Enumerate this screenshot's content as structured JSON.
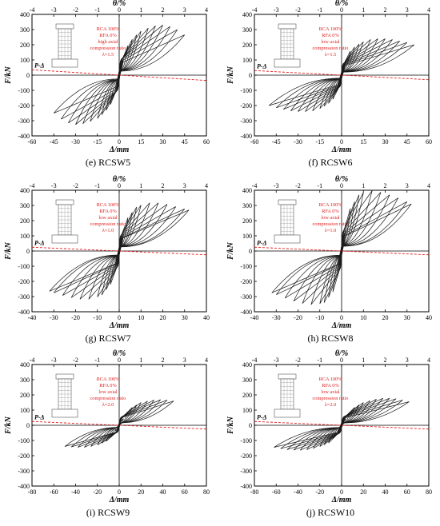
{
  "layout_order": [
    "RCSW5",
    "RCSW6",
    "RCSW7",
    "RCSW8",
    "RCSW9",
    "RCSW10"
  ],
  "colors": {
    "loop": "#1a1a1a",
    "pdelta": "#e02020",
    "note": "#e02020",
    "axis": "#000000"
  },
  "chart_data": [
    {
      "id": "e",
      "caption_letter": "(e)",
      "caption_name": "RCSW5",
      "type": "line",
      "xlabel": "Δ/mm",
      "ylabel": "F/kN",
      "top_label": "θ/%",
      "xlim": [
        -60,
        60
      ],
      "ylim": [
        -400,
        400
      ],
      "xticks": [
        "-60",
        "-45",
        "-30",
        "-15",
        "0",
        "15",
        "30",
        "45",
        "60"
      ],
      "xtick_values": [
        -60,
        -45,
        -30,
        -15,
        0,
        15,
        30,
        45,
        60
      ],
      "topticks": [
        "-4",
        "-3",
        "-2",
        "-1",
        "0",
        "1",
        "2",
        "3",
        "4"
      ],
      "ytick_values": [
        -400,
        -300,
        -200,
        -100,
        0,
        100,
        200,
        300,
        400
      ],
      "yticks": [
        "-400",
        "-300",
        "-200",
        "-100",
        "0",
        "100",
        "200",
        "300",
        "400"
      ],
      "notes": [
        "RCA 100%",
        "RFA 0%",
        "high axial",
        "compression ratio",
        "λ=1.5"
      ],
      "pdelta_label": "P-Δ",
      "pdelta_line": {
        "x": [
          -60,
          60
        ],
        "y": [
          35,
          -35
        ]
      },
      "amplitudes": [
        3,
        6,
        9,
        12,
        15,
        20,
        25,
        30,
        35,
        40,
        45
      ],
      "peak_force": {
        "x": [
          0,
          5,
          10,
          15,
          20,
          25,
          30,
          35,
          40,
          45
        ],
        "pos": [
          0,
          180,
          250,
          290,
          310,
          325,
          330,
          320,
          300,
          265
        ],
        "neg": [
          0,
          -180,
          -245,
          -285,
          -305,
          -320,
          -325,
          -315,
          -290,
          -250
        ]
      }
    },
    {
      "id": "f",
      "caption_letter": "(f)",
      "caption_name": "RCSW6",
      "type": "line",
      "xlabel": "Δ/mm",
      "ylabel": "F/kN",
      "top_label": "θ/%",
      "xlim": [
        -60,
        60
      ],
      "ylim": [
        -400,
        400
      ],
      "xticks": [
        "-60",
        "-45",
        "-30",
        "-15",
        "0",
        "15",
        "30",
        "45",
        "60"
      ],
      "xtick_values": [
        -60,
        -45,
        -30,
        -15,
        0,
        15,
        30,
        45,
        60
      ],
      "topticks": [
        "-4",
        "-3",
        "-2",
        "-1",
        "0",
        "1",
        "2",
        "3",
        "4"
      ],
      "ytick_values": [
        -400,
        -300,
        -200,
        -100,
        0,
        100,
        200,
        300,
        400
      ],
      "yticks": [
        "-400",
        "-300",
        "-200",
        "-100",
        "0",
        "100",
        "200",
        "300",
        "400"
      ],
      "notes": [
        "RCA 100%",
        "RFA 0%",
        "low axial",
        "compression ratio",
        "λ=1.5"
      ],
      "pdelta_label": "P-Δ",
      "pdelta_line": {
        "x": [
          -60,
          60
        ],
        "y": [
          30,
          -30
        ]
      },
      "amplitudes": [
        3,
        6,
        9,
        12,
        15,
        20,
        25,
        30,
        35,
        40,
        45,
        50
      ],
      "peak_force": {
        "x": [
          0,
          5,
          10,
          15,
          20,
          25,
          30,
          35,
          40,
          45,
          50
        ],
        "pos": [
          0,
          150,
          195,
          220,
          235,
          240,
          240,
          235,
          225,
          215,
          200
        ],
        "neg": [
          0,
          -150,
          -195,
          -220,
          -235,
          -240,
          -240,
          -235,
          -225,
          -215,
          -200
        ]
      }
    },
    {
      "id": "g",
      "caption_letter": "(g)",
      "caption_name": "RCSW7",
      "type": "line",
      "xlabel": "Δ/mm",
      "ylabel": "F/kN",
      "top_label": "θ/%",
      "xlim": [
        -40,
        40
      ],
      "ylim": [
        -400,
        400
      ],
      "xticks": [
        "-40",
        "-30",
        "-20",
        "-10",
        "0",
        "10",
        "20",
        "30",
        "40"
      ],
      "xtick_values": [
        -40,
        -30,
        -20,
        -10,
        0,
        10,
        20,
        30,
        40
      ],
      "topticks": [
        "-4",
        "-3",
        "-2",
        "-1",
        "0",
        "1",
        "2",
        "3",
        "4"
      ],
      "ytick_values": [
        -400,
        -300,
        -200,
        -100,
        0,
        100,
        200,
        300,
        400
      ],
      "yticks": [
        "-400",
        "-300",
        "-200",
        "-100",
        "0",
        "100",
        "200",
        "300",
        "400"
      ],
      "notes": [
        "RCA 100%",
        "RFA 0%",
        "low axial",
        "compression ratio",
        "λ=1.0"
      ],
      "pdelta_label": "P-Δ",
      "pdelta_line": {
        "x": [
          -40,
          40
        ],
        "y": [
          25,
          -25
        ]
      },
      "amplitudes": [
        2,
        4,
        6,
        8,
        10,
        14,
        18,
        22,
        26,
        30,
        34
      ],
      "peak_force": {
        "x": [
          0,
          4,
          8,
          12,
          16,
          20,
          24,
          28,
          32
        ],
        "pos": [
          0,
          220,
          290,
          315,
          320,
          315,
          300,
          285,
          270
        ],
        "neg": [
          0,
          -220,
          -290,
          -315,
          -320,
          -315,
          -300,
          -285,
          -265
        ]
      }
    },
    {
      "id": "h",
      "caption_letter": "(h)",
      "caption_name": "RCSW8",
      "type": "line",
      "xlabel": "Δ/mm",
      "ylabel": "F/kN",
      "top_label": "θ/%",
      "xlim": [
        -40,
        40
      ],
      "ylim": [
        -400,
        400
      ],
      "xticks": [
        "-40",
        "-30",
        "-20",
        "-10",
        "0",
        "10",
        "20",
        "30",
        "40"
      ],
      "xtick_values": [
        -40,
        -30,
        -20,
        -10,
        0,
        10,
        20,
        30,
        40
      ],
      "topticks": [
        "-4",
        "-3",
        "-2",
        "-1",
        "0",
        "1",
        "2",
        "3",
        "4"
      ],
      "ytick_values": [
        -400,
        -300,
        -200,
        -100,
        0,
        100,
        200,
        300,
        400
      ],
      "yticks": [
        "-400",
        "-300",
        "-200",
        "-100",
        "0",
        "100",
        "200",
        "300",
        "400"
      ],
      "notes": [
        "RCA 100%",
        "RFA 0%",
        "low axial",
        "compression ratio",
        "λ=1.0"
      ],
      "pdelta_label": "P-Δ",
      "pdelta_line": {
        "x": [
          -40,
          40
        ],
        "y": [
          25,
          -25
        ]
      },
      "amplitudes": [
        2,
        4,
        6,
        8,
        10,
        14,
        18,
        22,
        26,
        30,
        34
      ],
      "peak_force": {
        "x": [
          0,
          4,
          8,
          12,
          16,
          20,
          24,
          28,
          32
        ],
        "pos": [
          0,
          280,
          370,
          400,
          395,
          380,
          360,
          340,
          310
        ],
        "neg": [
          0,
          -270,
          -340,
          -355,
          -350,
          -340,
          -320,
          -300,
          -275
        ]
      }
    },
    {
      "id": "i",
      "caption_letter": "(i)",
      "caption_name": "RCSW9",
      "type": "line",
      "xlabel": "Δ/mm",
      "ylabel": "F/kN",
      "top_label": "θ/%",
      "xlim": [
        -80,
        80
      ],
      "ylim": [
        -400,
        400
      ],
      "xticks": [
        "-80",
        "-60",
        "-40",
        "-20",
        "0",
        "20",
        "40",
        "60",
        "80"
      ],
      "xtick_values": [
        -80,
        -60,
        -40,
        -20,
        0,
        20,
        40,
        60,
        80
      ],
      "topticks": [
        "-4",
        "-3",
        "-2",
        "-1",
        "0",
        "1",
        "2",
        "3",
        "4"
      ],
      "ytick_values": [
        -400,
        -300,
        -200,
        -100,
        0,
        100,
        200,
        300,
        400
      ],
      "yticks": [
        "-400",
        "-300",
        "-200",
        "-100",
        "0",
        "100",
        "200",
        "300",
        "400"
      ],
      "notes": [
        "RCA 100%",
        "RFA 0%",
        "low axial",
        "compression ratio",
        "λ=2.0"
      ],
      "pdelta_label": "P-Δ",
      "pdelta_line": {
        "x": [
          -80,
          80
        ],
        "y": [
          25,
          -25
        ]
      },
      "amplitudes": [
        4,
        8,
        12,
        16,
        20,
        26,
        32,
        38,
        44,
        50
      ],
      "peak_force": {
        "x": [
          0,
          10,
          20,
          30,
          40,
          50,
          56
        ],
        "pos": [
          0,
          110,
          150,
          165,
          170,
          160,
          140
        ],
        "neg": [
          0,
          -100,
          -130,
          -145,
          -145,
          -140,
          -130
        ]
      }
    },
    {
      "id": "j",
      "caption_letter": "(j)",
      "caption_name": "RCSW10",
      "type": "line",
      "xlabel": "Δ/mm",
      "ylabel": "F/kN",
      "top_label": "θ/%",
      "xlim": [
        -80,
        80
      ],
      "ylim": [
        -400,
        400
      ],
      "xticks": [
        "-80",
        "-60",
        "-40",
        "-20",
        "0",
        "20",
        "40",
        "60",
        "80"
      ],
      "xtick_values": [
        -80,
        -60,
        -40,
        -20,
        0,
        20,
        40,
        60,
        80
      ],
      "topticks": [
        "-4",
        "-3",
        "-2",
        "-1",
        "0",
        "1",
        "2",
        "3",
        "4"
      ],
      "ytick_values": [
        -400,
        -300,
        -200,
        -100,
        0,
        100,
        200,
        300,
        400
      ],
      "yticks": [
        "-400",
        "-300",
        "-200",
        "-100",
        "0",
        "100",
        "200",
        "300",
        "400"
      ],
      "notes": [
        "RCA 100%",
        "RFA 0%",
        "low axial",
        "compression ratio",
        "λ=2.0"
      ],
      "pdelta_label": "P-Δ",
      "pdelta_line": {
        "x": [
          -80,
          80
        ],
        "y": [
          25,
          -25
        ]
      },
      "amplitudes": [
        4,
        8,
        12,
        16,
        20,
        26,
        32,
        38,
        44,
        50,
        56,
        62
      ],
      "peak_force": {
        "x": [
          0,
          10,
          20,
          30,
          40,
          50,
          60,
          64
        ],
        "pos": [
          0,
          110,
          150,
          170,
          180,
          175,
          160,
          150
        ],
        "neg": [
          0,
          -110,
          -140,
          -160,
          -165,
          -160,
          -150,
          -140
        ]
      }
    }
  ]
}
